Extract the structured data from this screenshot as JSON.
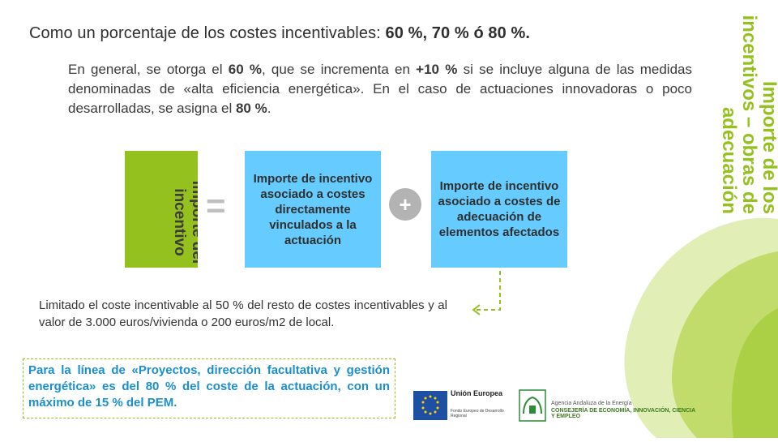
{
  "side_title": "Importe de los incentivos – obras de adecuación",
  "heading": {
    "prefix": "Como un porcentaje de los costes incentivables: ",
    "values": "60 %, 70 % ó 80 %."
  },
  "paragraph": {
    "p1": "En general, se otorga el ",
    "b1": "60 %",
    "p2": ", que se incrementa en ",
    "b2": "+10 %",
    "p3": " si se incluye alguna de las medidas denominadas de «alta eficiencia energética». En el caso de actuaciones innovadoras o poco desarrolladas, se asigna el ",
    "b3": "80 %",
    "p4": "."
  },
  "formula": {
    "total_label": "Importe del incentivo",
    "equals": "=",
    "box1": "Importe de incentivo asociado a costes directamente vinculados a la actuación",
    "plus": "+",
    "box2": "Importe de incentivo asociado a costes de adecuación de elementos afectados"
  },
  "limit_text": "Limitado el coste incentivable al 50 % del resto de costes incentivables y al valor de 3.000 euros/vivienda o 200 euros/m2 de local.",
  "note": "Para la línea de «Proyectos, dirección facultativa y gestión energética» es del 80 % del coste de la actuación, con un máximo de 15 % del PEM.",
  "logos": {
    "eu_title": "Unión Europea",
    "eu_sub": "Fondo Europeo de Desarrollo Regional",
    "agency_line1": "Agencia Andaluza de la Energía",
    "agency_line2": "CONSEJERÍA DE ECONOMÍA, INNOVACIÓN, CIENCIA Y EMPLEO"
  },
  "colors": {
    "accent_green": "#95c11f",
    "box_blue": "#66ccff",
    "note_blue": "#1a8fd0"
  }
}
